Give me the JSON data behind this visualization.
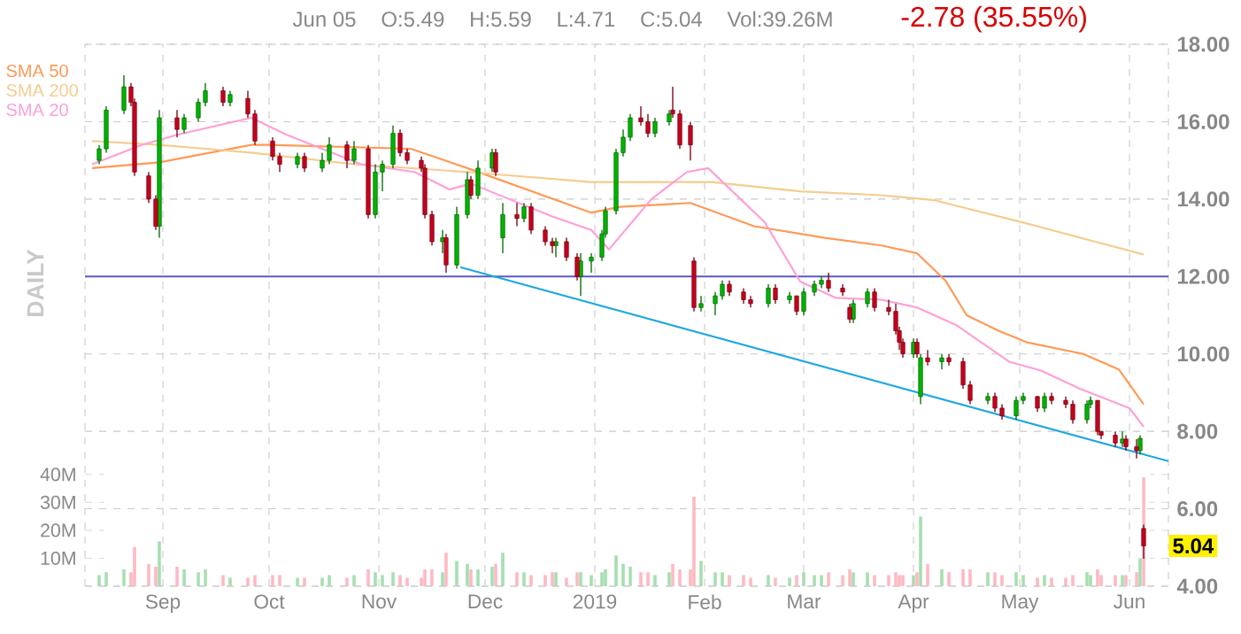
{
  "chart_data": {
    "type": "candlestick",
    "ylabel": "DAILY",
    "legend": "top left",
    "grid": true,
    "annotations": [
      "Jun 05",
      "O:5.49",
      "H:5.59",
      "L:4.71",
      "C:5.04",
      "Vol:39.26M",
      "-2.78 (35.55%)",
      {
        "text": "5.04"
      }
    ],
    "xlim": [
      "2018-08-10",
      "2019-06-12"
    ],
    "xticks": [
      {
        "value": "2018-09-01",
        "label": "Sep"
      },
      {
        "value": "2018-10-01",
        "label": "Oct"
      },
      {
        "value": "2018-11-01",
        "label": "Nov"
      },
      {
        "value": "2018-12-01",
        "label": "Dec"
      },
      {
        "value": "2019-01-01",
        "label": "2019"
      },
      {
        "value": "2019-02-01",
        "label": "Feb"
      },
      {
        "value": "2019-03-01",
        "label": "Mar"
      },
      {
        "value": "2019-04-01",
        "label": "Apr"
      },
      {
        "value": "2019-05-01",
        "label": "May"
      },
      {
        "value": "2019-06-01",
        "label": "Jun"
      }
    ],
    "y2lim": [
      4,
      18
    ],
    "y2ticks": [
      {
        "value": 4,
        "label": "4.00"
      },
      {
        "value": 6,
        "label": "6.00"
      },
      {
        "value": 8,
        "label": "8.00"
      },
      {
        "value": 10,
        "label": "10.00"
      },
      {
        "value": 12,
        "label": "12.00"
      },
      {
        "value": 14,
        "label": "14.00"
      },
      {
        "value": 16,
        "label": "16.00"
      },
      {
        "value": 18,
        "label": "18.00"
      }
    ],
    "ylim": [
      0,
      194
    ],
    "yticks": [
      {
        "value": 10,
        "label": "10M"
      },
      {
        "value": 20,
        "label": "20M"
      },
      {
        "value": 30,
        "label": "30M"
      },
      {
        "value": 40,
        "label": "40M"
      }
    ],
    "ref_lines": [
      {
        "axis": "y2",
        "value": 12,
        "color": "#5a5ac8"
      }
    ],
    "series": [
      {
        "axis": "y2",
        "color": "#00b400",
        "x": [
          "2018-08-14",
          "2018-08-16",
          "2018-08-21",
          "2018-08-31",
          "2018-09-07",
          "2018-09-11",
          "2018-09-13",
          "2018-09-20",
          "2018-10-09",
          "2018-10-16",
          "2018-10-18",
          "2018-10-25",
          "2018-10-31",
          "2018-11-02",
          "2018-11-05",
          "2018-11-19",
          "2018-11-23",
          "2018-11-26",
          "2018-11-29",
          "2018-12-03",
          "2018-12-06",
          "2018-12-12",
          "2018-12-21",
          "2018-12-28",
          "2018-12-31",
          "2019-01-03",
          "2019-01-04",
          "2019-01-07",
          "2019-01-09",
          "2019-01-11",
          "2019-01-18",
          "2019-01-22",
          "2019-01-31",
          "2019-02-04",
          "2019-02-06",
          "2019-02-19",
          "2019-02-25",
          "2019-03-01",
          "2019-03-04",
          "2019-03-06",
          "2019-03-15",
          "2019-03-19",
          "2019-04-01",
          "2019-04-03",
          "2019-04-09",
          "2019-04-22",
          "2019-04-30",
          "2019-05-02",
          "2019-05-08",
          "2019-05-20",
          "2019-05-21",
          "2019-05-30",
          "2019-06-04"
        ],
        "ohlc": [
          [
            15.0,
            15.4,
            14.9,
            15.3
          ],
          [
            15.3,
            16.4,
            15.2,
            16.3
          ],
          [
            16.3,
            17.2,
            16.2,
            16.9
          ],
          [
            13.3,
            16.3,
            13.0,
            16.1
          ],
          [
            15.8,
            16.2,
            15.7,
            16.1
          ],
          [
            16.1,
            16.6,
            16.0,
            16.5
          ],
          [
            16.5,
            17.0,
            16.4,
            16.8
          ],
          [
            16.5,
            16.8,
            16.4,
            16.7
          ],
          [
            14.9,
            15.2,
            14.8,
            15.1
          ],
          [
            14.8,
            15.2,
            14.7,
            15.0
          ],
          [
            15.0,
            15.6,
            14.9,
            15.4
          ],
          [
            15.0,
            15.5,
            14.9,
            15.3
          ],
          [
            13.6,
            14.9,
            13.5,
            14.7
          ],
          [
            14.7,
            15.0,
            14.2,
            14.9
          ],
          [
            14.9,
            15.9,
            14.8,
            15.7
          ],
          [
            12.9,
            13.2,
            12.6,
            13.0
          ],
          [
            12.3,
            13.8,
            12.2,
            13.6
          ],
          [
            13.6,
            14.7,
            13.5,
            14.5
          ],
          [
            14.1,
            15.0,
            14.0,
            14.8
          ],
          [
            14.8,
            15.3,
            14.7,
            15.2
          ],
          [
            13.0,
            13.9,
            12.6,
            13.6
          ],
          [
            13.5,
            13.9,
            13.4,
            13.8
          ],
          [
            12.8,
            13.0,
            12.5,
            12.9
          ],
          [
            12.0,
            12.6,
            11.5,
            12.4
          ],
          [
            12.4,
            12.6,
            12.1,
            12.5
          ],
          [
            12.5,
            13.2,
            12.4,
            13.1
          ],
          [
            13.1,
            13.8,
            13.0,
            13.7
          ],
          [
            13.7,
            15.3,
            13.6,
            15.2
          ],
          [
            15.2,
            15.8,
            15.1,
            15.6
          ],
          [
            15.6,
            16.2,
            15.5,
            16.1
          ],
          [
            15.7,
            16.1,
            15.6,
            16.0
          ],
          [
            16.0,
            16.3,
            15.9,
            16.2
          ],
          [
            11.2,
            11.5,
            11.1,
            11.3
          ],
          [
            11.3,
            11.6,
            11.0,
            11.5
          ],
          [
            11.5,
            11.9,
            11.4,
            11.8
          ],
          [
            11.3,
            11.8,
            11.2,
            11.7
          ],
          [
            11.4,
            11.6,
            11.3,
            11.5
          ],
          [
            11.1,
            11.7,
            11.0,
            11.6
          ],
          [
            11.6,
            11.9,
            11.5,
            11.8
          ],
          [
            11.8,
            12.0,
            11.7,
            11.9
          ],
          [
            10.9,
            11.4,
            10.8,
            11.3
          ],
          [
            11.3,
            11.7,
            11.2,
            11.6
          ],
          [
            10.0,
            10.4,
            9.9,
            10.3
          ],
          [
            8.9,
            10.0,
            8.7,
            9.9
          ],
          [
            9.8,
            10.0,
            9.6,
            9.9
          ],
          [
            8.8,
            9.0,
            8.7,
            8.9
          ],
          [
            8.4,
            8.9,
            8.3,
            8.8
          ],
          [
            8.8,
            9.0,
            8.7,
            8.9
          ],
          [
            8.6,
            9.0,
            8.5,
            8.9
          ],
          [
            8.3,
            8.8,
            8.2,
            8.7
          ],
          [
            8.7,
            8.9,
            8.6,
            8.8
          ],
          [
            7.7,
            8.0,
            7.6,
            7.8
          ],
          [
            7.5,
            7.9,
            7.4,
            7.82
          ]
        ]
      },
      {
        "axis": "y2",
        "color": "#c8001e",
        "x": [
          "2018-08-23",
          "2018-08-24",
          "2018-08-28",
          "2018-08-30",
          "2018-09-05",
          "2018-09-18",
          "2018-09-25",
          "2018-09-27",
          "2018-10-02",
          "2018-10-04",
          "2018-10-11",
          "2018-10-23",
          "2018-10-29",
          "2018-11-07",
          "2018-11-09",
          "2018-11-13",
          "2018-11-14",
          "2018-11-16",
          "2018-11-20",
          "2018-11-27",
          "2018-12-04",
          "2018-12-10",
          "2018-12-14",
          "2018-12-18",
          "2018-12-20",
          "2018-12-24",
          "2018-12-27",
          "2019-01-14",
          "2019-01-16",
          "2019-01-23",
          "2019-01-25",
          "2019-01-28",
          "2019-01-29",
          "2019-02-08",
          "2019-02-12",
          "2019-02-14",
          "2019-02-21",
          "2019-02-27",
          "2019-03-08",
          "2019-03-12",
          "2019-03-14",
          "2019-03-21",
          "2019-03-25",
          "2019-03-27",
          "2019-03-28",
          "2019-03-29",
          "2019-04-02",
          "2019-04-05",
          "2019-04-11",
          "2019-04-15",
          "2019-04-17",
          "2019-04-24",
          "2019-04-26",
          "2019-05-06",
          "2019-05-10",
          "2019-05-14",
          "2019-05-16",
          "2019-05-23",
          "2019-05-24",
          "2019-05-28",
          "2019-05-31",
          "2019-06-03",
          "2019-06-05"
        ],
        "ohlc": [
          [
            16.9,
            17.0,
            16.4,
            16.5
          ],
          [
            16.5,
            16.6,
            14.6,
            14.7
          ],
          [
            14.6,
            14.7,
            13.9,
            14.0
          ],
          [
            14.0,
            14.1,
            13.2,
            13.3
          ],
          [
            16.1,
            16.3,
            15.6,
            15.8
          ],
          [
            16.8,
            16.9,
            16.4,
            16.5
          ],
          [
            16.6,
            16.8,
            16.1,
            16.2
          ],
          [
            16.2,
            16.3,
            15.4,
            15.5
          ],
          [
            15.5,
            15.6,
            15.0,
            15.1
          ],
          [
            15.1,
            15.2,
            14.7,
            14.9
          ],
          [
            15.1,
            15.2,
            14.7,
            14.8
          ],
          [
            15.4,
            15.5,
            14.8,
            15.0
          ],
          [
            15.3,
            15.4,
            13.5,
            13.6
          ],
          [
            15.7,
            15.8,
            15.1,
            15.2
          ],
          [
            15.2,
            15.3,
            14.9,
            15.0
          ],
          [
            15.0,
            15.1,
            14.7,
            14.8
          ],
          [
            14.8,
            14.9,
            13.5,
            13.6
          ],
          [
            13.6,
            13.7,
            12.8,
            12.9
          ],
          [
            13.0,
            13.1,
            12.1,
            12.3
          ],
          [
            14.5,
            14.6,
            14.0,
            14.1
          ],
          [
            15.2,
            15.3,
            14.6,
            14.7
          ],
          [
            13.6,
            13.9,
            13.3,
            13.5
          ],
          [
            13.8,
            13.9,
            13.1,
            13.2
          ],
          [
            13.2,
            13.3,
            12.8,
            12.9
          ],
          [
            12.9,
            13.0,
            12.6,
            12.8
          ],
          [
            12.9,
            13.0,
            12.4,
            12.5
          ],
          [
            12.5,
            12.6,
            11.9,
            12.0
          ],
          [
            16.1,
            16.4,
            15.9,
            16.0
          ],
          [
            16.0,
            16.2,
            15.6,
            15.7
          ],
          [
            16.3,
            16.9,
            16.1,
            16.2
          ],
          [
            16.2,
            16.3,
            15.3,
            15.4
          ],
          [
            15.9,
            16.0,
            15.0,
            15.4
          ],
          [
            12.4,
            12.5,
            11.1,
            11.2
          ],
          [
            11.8,
            11.9,
            11.5,
            11.6
          ],
          [
            11.6,
            11.7,
            11.3,
            11.4
          ],
          [
            11.4,
            11.5,
            11.2,
            11.3
          ],
          [
            11.7,
            11.8,
            11.3,
            11.4
          ],
          [
            11.5,
            11.5,
            11.0,
            11.1
          ],
          [
            11.9,
            12.1,
            11.6,
            11.7
          ],
          [
            11.7,
            11.8,
            11.5,
            11.6
          ],
          [
            11.2,
            11.3,
            10.8,
            10.9
          ],
          [
            11.6,
            11.7,
            11.1,
            11.2
          ],
          [
            11.2,
            11.4,
            11.0,
            11.1
          ],
          [
            11.1,
            11.3,
            10.5,
            10.6
          ],
          [
            10.6,
            10.7,
            10.1,
            10.3
          ],
          [
            10.3,
            10.4,
            9.9,
            10.0
          ],
          [
            10.3,
            10.4,
            9.9,
            10.0
          ],
          [
            9.9,
            10.1,
            9.7,
            9.8
          ],
          [
            9.9,
            10.0,
            9.7,
            9.8
          ],
          [
            9.8,
            9.9,
            9.1,
            9.2
          ],
          [
            9.2,
            9.3,
            8.7,
            8.8
          ],
          [
            8.9,
            9.0,
            8.5,
            8.6
          ],
          [
            8.6,
            8.7,
            8.3,
            8.4
          ],
          [
            8.9,
            8.9,
            8.5,
            8.6
          ],
          [
            8.9,
            9.0,
            8.7,
            8.8
          ],
          [
            8.8,
            8.9,
            8.6,
            8.7
          ],
          [
            8.7,
            8.8,
            8.2,
            8.3
          ],
          [
            8.8,
            8.8,
            7.9,
            8.0
          ],
          [
            8.0,
            8.0,
            7.8,
            7.9
          ],
          [
            7.9,
            8.0,
            7.6,
            7.7
          ],
          [
            7.8,
            7.9,
            7.5,
            7.6
          ],
          [
            7.6,
            7.8,
            7.3,
            7.5
          ],
          [
            5.49,
            5.59,
            4.71,
            5.04
          ]
        ]
      },
      {
        "type": "bar",
        "color": "#a6dfb0",
        "x": [
          "2018-08-14",
          "2018-08-16",
          "2018-08-21",
          "2018-08-31",
          "2018-09-07",
          "2018-09-11",
          "2018-09-13",
          "2018-09-20",
          "2018-10-09",
          "2018-10-16",
          "2018-10-18",
          "2018-10-25",
          "2018-10-31",
          "2018-11-02",
          "2018-11-05",
          "2018-11-19",
          "2018-11-23",
          "2018-11-26",
          "2018-11-29",
          "2018-12-03",
          "2018-12-06",
          "2018-12-12",
          "2018-12-21",
          "2018-12-28",
          "2018-12-31",
          "2019-01-03",
          "2019-01-04",
          "2019-01-07",
          "2019-01-09",
          "2019-01-11",
          "2019-01-18",
          "2019-01-22",
          "2019-01-31",
          "2019-02-04",
          "2019-02-06",
          "2019-02-19",
          "2019-02-25",
          "2019-03-01",
          "2019-03-04",
          "2019-03-06",
          "2019-03-15",
          "2019-03-19",
          "2019-04-01",
          "2019-04-03",
          "2019-04-09",
          "2019-04-22",
          "2019-04-30",
          "2019-05-02",
          "2019-05-08",
          "2019-05-20",
          "2019-05-21",
          "2019-05-30",
          "2019-06-04"
        ],
        "values": [
          4,
          5,
          6,
          16,
          6,
          5,
          6,
          3,
          3,
          3,
          4,
          4,
          5,
          4,
          5,
          5,
          9,
          8,
          6,
          7,
          12,
          5,
          5,
          5,
          4,
          5,
          6,
          11,
          8,
          7,
          4,
          5,
          9,
          5,
          5,
          4,
          3,
          5,
          4,
          4,
          5,
          5,
          4,
          25,
          6,
          5,
          5,
          4,
          4,
          5,
          4,
          4,
          10
        ]
      },
      {
        "type": "bar",
        "color": "#ffb9c2",
        "x": [
          "2018-08-23",
          "2018-08-24",
          "2018-08-28",
          "2018-08-30",
          "2018-09-05",
          "2018-09-18",
          "2018-09-25",
          "2018-09-27",
          "2018-10-02",
          "2018-10-04",
          "2018-10-11",
          "2018-10-23",
          "2018-10-29",
          "2018-11-07",
          "2018-11-09",
          "2018-11-13",
          "2018-11-14",
          "2018-11-16",
          "2018-11-20",
          "2018-11-27",
          "2018-12-04",
          "2018-12-10",
          "2018-12-14",
          "2018-12-18",
          "2018-12-20",
          "2018-12-24",
          "2018-12-27",
          "2019-01-14",
          "2019-01-16",
          "2019-01-23",
          "2019-01-25",
          "2019-01-28",
          "2019-01-29",
          "2019-02-08",
          "2019-02-12",
          "2019-02-14",
          "2019-02-21",
          "2019-02-27",
          "2019-03-08",
          "2019-03-12",
          "2019-03-14",
          "2019-03-21",
          "2019-03-25",
          "2019-03-27",
          "2019-03-28",
          "2019-03-29",
          "2019-04-02",
          "2019-04-05",
          "2019-04-11",
          "2019-04-15",
          "2019-04-17",
          "2019-04-24",
          "2019-04-26",
          "2019-05-06",
          "2019-05-10",
          "2019-05-14",
          "2019-05-16",
          "2019-05-23",
          "2019-05-24",
          "2019-05-28",
          "2019-05-31",
          "2019-06-03",
          "2019-06-05"
        ],
        "values": [
          5,
          14,
          8,
          7,
          7,
          4,
          3,
          4,
          4,
          4,
          3,
          3,
          6,
          4,
          3,
          3,
          6,
          6,
          12,
          6,
          8,
          5,
          4,
          4,
          5,
          3,
          5,
          5,
          5,
          8,
          6,
          6,
          32,
          4,
          4,
          3,
          3,
          4,
          5,
          4,
          6,
          4,
          4,
          5,
          4,
          4,
          5,
          8,
          5,
          6,
          6,
          5,
          4,
          3,
          3,
          3,
          4,
          6,
          4,
          4,
          4,
          5,
          39
        ]
      },
      {
        "name": "SMA 50",
        "type": "line",
        "axis": "y2",
        "color": "#ff9955",
        "x": [
          "2018-08-12",
          "2018-08-31",
          "2018-09-26",
          "2018-10-01",
          "2018-11-10",
          "2018-11-26",
          "2018-12-31",
          "2019-01-08",
          "2019-01-28",
          "2019-02-15",
          "2019-03-07",
          "2019-03-23",
          "2019-04-02",
          "2019-04-10",
          "2019-04-16",
          "2019-04-25",
          "2019-05-03",
          "2019-05-19",
          "2019-05-29",
          "2019-06-05"
        ],
        "values": [
          14.8,
          14.95,
          15.4,
          15.4,
          15.3,
          14.8,
          13.65,
          13.8,
          13.9,
          13.3,
          13.0,
          12.8,
          12.6,
          11.9,
          11.0,
          10.6,
          10.3,
          10.0,
          9.6,
          8.7
        ]
      },
      {
        "name": "SMA 200",
        "type": "line",
        "axis": "y2",
        "color": "#f5cc8f",
        "x": [
          "2018-08-12",
          "2018-08-31",
          "2018-09-26",
          "2018-10-25",
          "2018-11-26",
          "2018-12-31",
          "2019-02-03",
          "2019-02-28",
          "2019-03-23",
          "2019-04-07",
          "2019-05-03",
          "2019-06-05"
        ],
        "values": [
          15.5,
          15.4,
          15.2,
          14.9,
          14.7,
          14.44,
          14.44,
          14.2,
          14.1,
          13.97,
          13.37,
          12.57
        ]
      },
      {
        "name": "SMA 20",
        "type": "line",
        "axis": "y2",
        "color": "#ff9fd5",
        "x": [
          "2018-08-12",
          "2018-08-26",
          "2018-09-05",
          "2018-09-26",
          "2018-10-06",
          "2018-10-27",
          "2018-11-11",
          "2018-11-21",
          "2018-11-27",
          "2018-12-20",
          "2018-12-31",
          "2019-01-05",
          "2019-01-17",
          "2019-01-27",
          "2019-02-02",
          "2019-02-18",
          "2019-02-28",
          "2019-03-10",
          "2019-03-23",
          "2019-04-02",
          "2019-04-13",
          "2019-04-28",
          "2019-05-07",
          "2019-05-18",
          "2019-06-01",
          "2019-06-05"
        ],
        "values": [
          14.9,
          15.4,
          15.66,
          16.1,
          15.66,
          14.9,
          14.7,
          14.25,
          14.4,
          13.55,
          13.2,
          12.7,
          14.0,
          14.7,
          14.8,
          13.4,
          11.87,
          11.45,
          11.4,
          11.2,
          10.75,
          9.8,
          9.57,
          9.1,
          8.6,
          8.12
        ]
      },
      {
        "type": "line",
        "axis": "y2",
        "color": "#1fa8e0",
        "x": [
          "2018-11-24",
          "2019-06-12"
        ],
        "values": [
          12.24,
          7.23
        ]
      }
    ]
  }
}
